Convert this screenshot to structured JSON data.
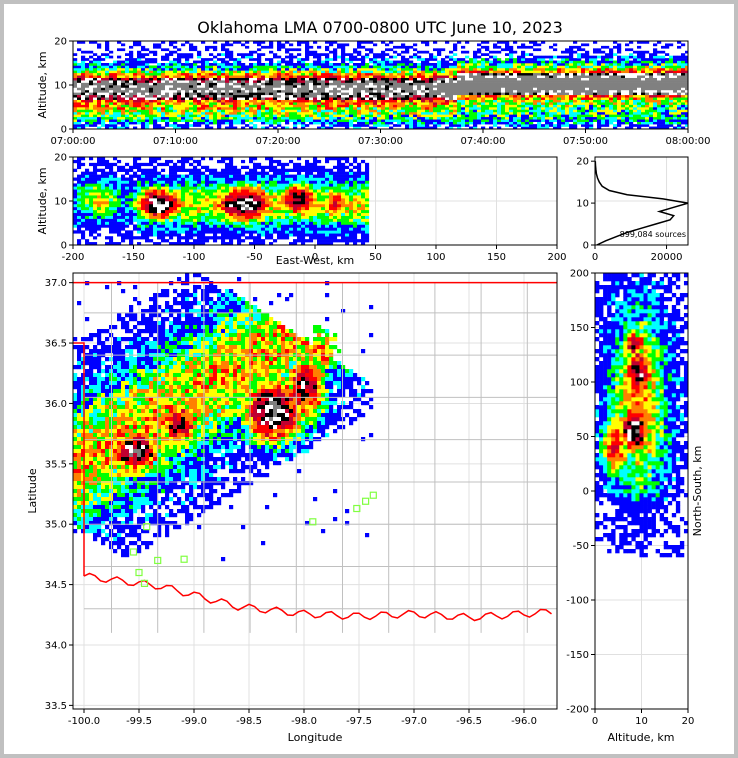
{
  "chart_data": {
    "type": "heatmap",
    "title": "Oklahoma LMA 0700-0800 UTC June 10, 2023",
    "source_count_label": "899,084 sources",
    "colormap": [
      "#ffffff",
      "#0000ff",
      "#00ffff",
      "#00ff00",
      "#ffff00",
      "#ff8000",
      "#ff0000",
      "#c00030",
      "#000000",
      "#ffffff",
      "#808080"
    ],
    "boundary_color": "#ff0000",
    "county_color": "#c0c0c0",
    "station_color": "#80ff40",
    "panels": {
      "time_height": {
        "xlabel": "",
        "ylabel": "Altitude, km",
        "xticks": [
          "07:00:00",
          "07:10:00",
          "07:20:00",
          "07:30:00",
          "07:40:00",
          "07:50:00",
          "08:00:00"
        ],
        "yticks": [
          "0",
          "10",
          "20"
        ],
        "ylim": [
          0,
          20
        ]
      },
      "ew_height": {
        "xlabel": "East-West, km",
        "ylabel": "Altitude, km",
        "xticks": [
          "-200",
          "-150",
          "-100",
          "-50",
          "0",
          "50",
          "100",
          "150",
          "200"
        ],
        "yticks": [
          "0",
          "10",
          "20"
        ],
        "xlim": [
          -200,
          200
        ],
        "ylim": [
          0,
          20
        ]
      },
      "alt_histogram": {
        "xticks": [
          "0",
          "20000"
        ],
        "yticks": [
          "0",
          "10",
          "20"
        ],
        "profile": [
          [
            0,
            500
          ],
          [
            1,
            3000
          ],
          [
            2,
            6000
          ],
          [
            3,
            9000
          ],
          [
            4,
            13000
          ],
          [
            5,
            17000
          ],
          [
            6,
            21000
          ],
          [
            7,
            22000
          ],
          [
            8,
            18000
          ],
          [
            9,
            22000
          ],
          [
            10,
            26000
          ],
          [
            11,
            19000
          ],
          [
            12,
            9000
          ],
          [
            13,
            4000
          ],
          [
            14,
            2000
          ],
          [
            15,
            1200
          ],
          [
            16,
            700
          ],
          [
            17,
            400
          ],
          [
            18,
            250
          ],
          [
            19,
            150
          ],
          [
            20,
            80
          ]
        ]
      },
      "plan": {
        "xlabel": "Longitude",
        "ylabel": "Latitude",
        "xticks": [
          "-100.0",
          "-99.5",
          "-99.0",
          "-98.5",
          "-98.0",
          "-97.5",
          "-97.0",
          "-96.5",
          "-96.0"
        ],
        "yticks": [
          "33.5",
          "34.0",
          "34.5",
          "35.0",
          "35.5",
          "36.0",
          "36.5",
          "37.0"
        ],
        "xlim": [
          -100.1,
          -95.7
        ],
        "ylim": [
          33.5,
          37.0
        ],
        "stations": [
          [
            -99.55,
            34.77
          ],
          [
            -99.5,
            34.6
          ],
          [
            -99.45,
            34.51
          ],
          [
            -99.33,
            34.7
          ],
          [
            -99.09,
            34.71
          ],
          [
            -99.43,
            34.98
          ],
          [
            -97.92,
            35.02
          ],
          [
            -97.52,
            35.13
          ],
          [
            -97.44,
            35.19
          ],
          [
            -97.37,
            35.24
          ]
        ]
      },
      "ns_height": {
        "xlabel": "Altitude, km",
        "ylabel": "North-South, km",
        "xticks": [
          "0",
          "10",
          "20"
        ],
        "yticks": [
          "-200",
          "-150",
          "-100",
          "-50",
          "0",
          "50",
          "100",
          "150",
          "200"
        ],
        "xlim": [
          0,
          20
        ],
        "ylim": [
          -200,
          200
        ]
      }
    }
  }
}
